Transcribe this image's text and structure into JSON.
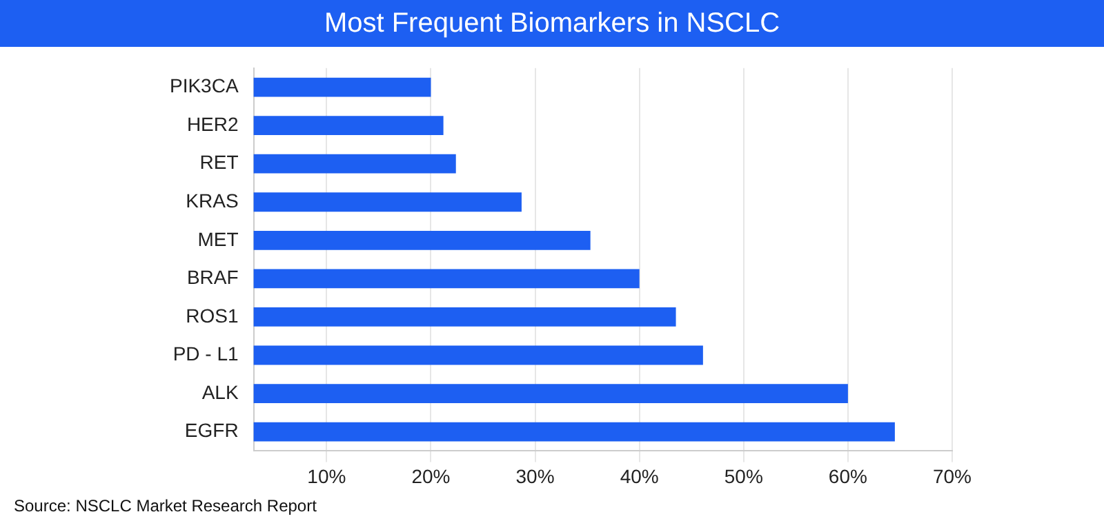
{
  "chart_data": {
    "type": "bar",
    "orientation": "horizontal",
    "title": "Most Frequent Biomarkers in NSCLC",
    "categories": [
      "PIK3CA",
      "HER2",
      "RET",
      "KRAS",
      "MET",
      "BRAF",
      "ROS1",
      "PD - L1",
      "ALK",
      "EGFR"
    ],
    "values": [
      20,
      21.2,
      22.4,
      28.7,
      35.3,
      40,
      43.5,
      46.1,
      60,
      64.5
    ],
    "color": "#1d5ff2",
    "xlim": [
      3,
      70
    ],
    "xticks": [
      {
        "value": 10,
        "label": "10%"
      },
      {
        "value": 20,
        "label": "20%"
      },
      {
        "value": 30,
        "label": "30%"
      },
      {
        "value": 40,
        "label": "40%"
      },
      {
        "value": 50,
        "label": "50%"
      },
      {
        "value": 60,
        "label": "60%"
      },
      {
        "value": 70,
        "label": "70%"
      }
    ],
    "grid": "x",
    "legend": false,
    "annotations": [
      "Source: NSCLC Market Research Report"
    ]
  }
}
